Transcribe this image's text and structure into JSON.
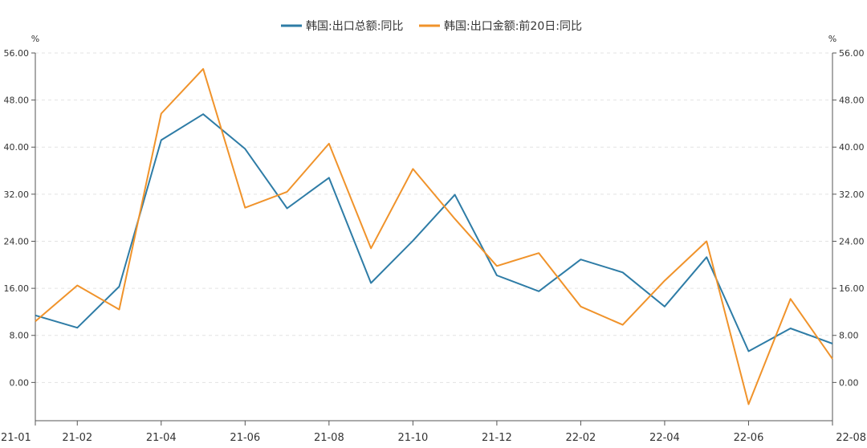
{
  "chart_data": {
    "type": "line",
    "title": "",
    "x_tick_labels": [
      "21-01",
      "21-02",
      "21-04",
      "21-06",
      "21-08",
      "21-10",
      "21-12",
      "22-02",
      "22-04",
      "22-06",
      "22-08"
    ],
    "x": [
      "21-01",
      "21-02",
      "21-03",
      "21-04",
      "21-05",
      "21-06",
      "21-07",
      "21-08",
      "21-09",
      "21-10",
      "21-11",
      "21-12",
      "22-01",
      "22-02",
      "22-03",
      "22-04",
      "22-05",
      "22-06",
      "22-07",
      "22-08"
    ],
    "y_tick_labels": [
      "0.00",
      "8.00",
      "16.00",
      "24.00",
      "32.00",
      "40.00",
      "48.00",
      "56.00"
    ],
    "ylim": [
      -6.5,
      56
    ],
    "y_unit_left": "%",
    "y_unit_right": "%",
    "grid": "horizontal-dashed",
    "legend_position": "top-center",
    "series": [
      {
        "name": "韩国:出口总额:同比",
        "color": "#2e7ca6",
        "values": [
          11.4,
          9.3,
          16.3,
          41.2,
          45.6,
          39.7,
          29.6,
          34.8,
          16.9,
          24.1,
          31.9,
          18.2,
          15.5,
          20.9,
          18.7,
          12.9,
          21.3,
          5.3,
          9.2,
          6.6
        ]
      },
      {
        "name": "韩国:出口金额:前20日:同比",
        "color": "#f0932b",
        "values": [
          10.4,
          16.5,
          12.4,
          45.7,
          53.3,
          29.7,
          32.4,
          40.6,
          22.8,
          36.3,
          27.8,
          19.8,
          22.0,
          12.9,
          9.8,
          17.3,
          24.0,
          -3.7,
          14.2,
          4.0
        ]
      }
    ]
  }
}
